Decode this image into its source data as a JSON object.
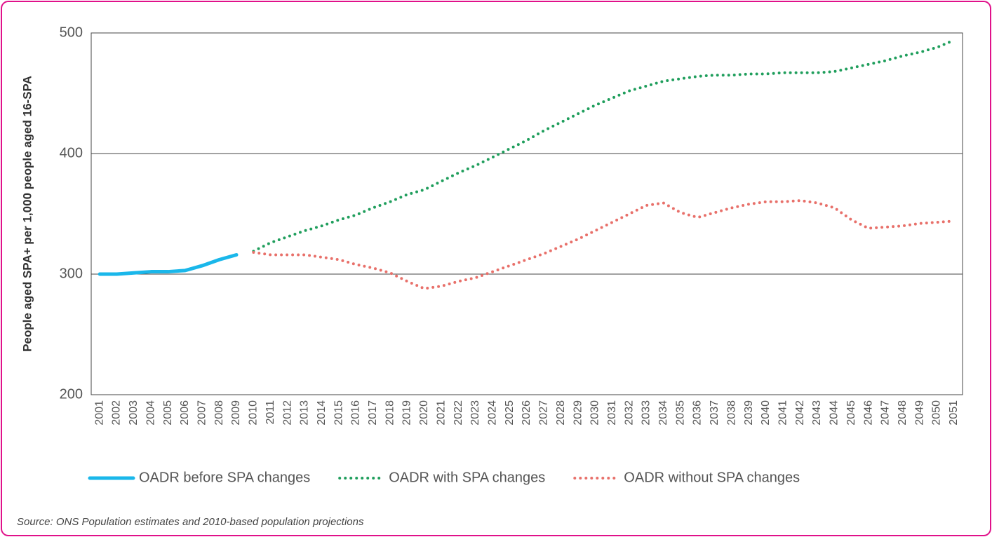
{
  "chart_data": {
    "type": "line",
    "y_label": "People aged SPA+ per 1,000 people aged 16-SPA",
    "source": "Source: ONS Population estimates and 2010-based population projections",
    "categories": [
      "2001",
      "2002",
      "2003",
      "2004",
      "2005",
      "2006",
      "2007",
      "2008",
      "2009",
      "2010",
      "2011",
      "2012",
      "2013",
      "2014",
      "2015",
      "2016",
      "2017",
      "2018",
      "2019",
      "2020",
      "2021",
      "2022",
      "2023",
      "2024",
      "2025",
      "2026",
      "2027",
      "2028",
      "2029",
      "2030",
      "2031",
      "2032",
      "2033",
      "2034",
      "2035",
      "2036",
      "2037",
      "2038",
      "2039",
      "2040",
      "2041",
      "2042",
      "2043",
      "2044",
      "2045",
      "2046",
      "2047",
      "2048",
      "2049",
      "2050",
      "2051"
    ],
    "series": [
      {
        "name": "OADR before SPA changes",
        "color": "#1ab7ea",
        "style": "solid",
        "values": [
          300,
          300,
          301,
          302,
          302,
          303,
          307,
          312,
          316,
          null,
          null,
          null,
          null,
          null,
          null,
          null,
          null,
          null,
          null,
          null,
          null,
          null,
          null,
          null,
          null,
          null,
          null,
          null,
          null,
          null,
          null,
          null,
          null,
          null,
          null,
          null,
          null,
          null,
          null,
          null,
          null,
          null,
          null,
          null,
          null,
          null,
          null,
          null,
          null,
          null,
          null
        ]
      },
      {
        "name": "OADR with SPA changes",
        "color": "#1f9e5c",
        "style": "dotted",
        "values": [
          null,
          null,
          null,
          null,
          null,
          null,
          null,
          null,
          null,
          319,
          326,
          331,
          336,
          340,
          345,
          349,
          355,
          360,
          366,
          370,
          377,
          384,
          390,
          397,
          404,
          411,
          419,
          426,
          433,
          440,
          446,
          452,
          456,
          460,
          462,
          464,
          465,
          465,
          466,
          466,
          467,
          467,
          467,
          468,
          471,
          474,
          477,
          481,
          484,
          488,
          494
        ]
      },
      {
        "name": "OADR without SPA changes",
        "color": "#e8706a",
        "style": "dotted",
        "values": [
          null,
          null,
          null,
          null,
          null,
          null,
          null,
          null,
          null,
          318,
          316,
          316,
          316,
          314,
          312,
          308,
          305,
          301,
          294,
          288,
          290,
          294,
          297,
          302,
          307,
          312,
          317,
          323,
          329,
          336,
          343,
          350,
          357,
          359,
          351,
          347,
          351,
          355,
          358,
          360,
          360,
          361,
          359,
          355,
          345,
          338,
          339,
          340,
          342,
          343,
          344
        ]
      }
    ],
    "ylim": [
      200,
      500
    ],
    "yticks": [
      200,
      300,
      400,
      500
    ],
    "grid": true
  }
}
